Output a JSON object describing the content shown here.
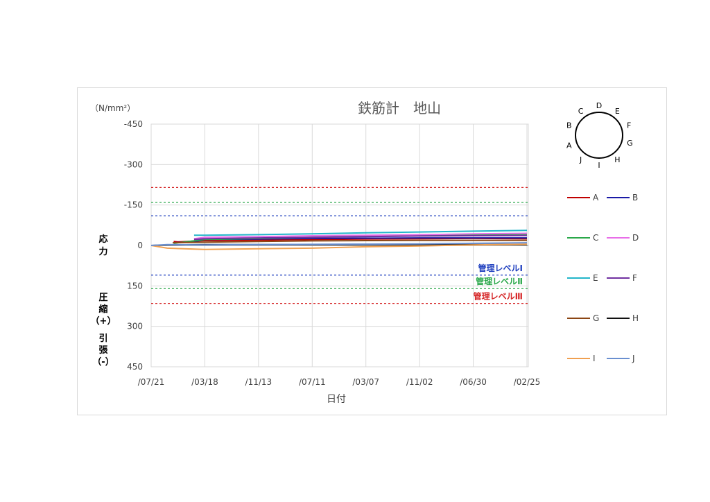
{
  "chart_data": {
    "type": "line",
    "title": "鉄筋計　地山",
    "unit": "（N/mm²）",
    "xlabel": "日付",
    "ylabel_top": [
      "応",
      "力"
    ],
    "ylabel_mid": [
      "圧",
      "縮",
      "（+）"
    ],
    "ylabel_bot": [
      "引",
      "張",
      "（-）"
    ],
    "yticks": [
      -450,
      -300,
      -150,
      0,
      150,
      300,
      450
    ],
    "ylim": [
      -450,
      450
    ],
    "y_inverted": true,
    "x_categories": [
      "/07/21",
      "/03/18",
      "/11/13",
      "/07/11",
      "/03/07",
      "/11/02",
      "/06/30",
      "/02/25"
    ],
    "grid": true,
    "levels": [
      {
        "name": "管理レベルⅠ",
        "value": 110,
        "color": "#1f3fbf"
      },
      {
        "name": "管理レベルⅡ",
        "value": 160,
        "color": "#2aa84a"
      },
      {
        "name": "管理レベルⅢ",
        "value": 215,
        "color": "#d62728"
      }
    ],
    "mirror_levels": [
      -110,
      -160,
      -215
    ],
    "series": [
      {
        "name": "A",
        "color": "#c00000",
        "x": [
          0.42,
          0.5,
          1,
          2,
          3,
          4,
          5,
          6,
          7
        ],
        "y": [
          -15,
          -13,
          -18,
          -20,
          -22,
          -24,
          -25,
          -26,
          -25
        ]
      },
      {
        "name": "B",
        "color": "#1a1aa6",
        "x": [
          0.42,
          0.8,
          1,
          2,
          3,
          4,
          5,
          6,
          7
        ],
        "y": [
          -10,
          -14,
          -22,
          -24,
          -26,
          -27,
          -28,
          -28,
          -28
        ]
      },
      {
        "name": "C",
        "color": "#2aa84a",
        "x": [
          0.42,
          1,
          2,
          3,
          4,
          5,
          6,
          7
        ],
        "y": [
          -8,
          -22,
          -26,
          -30,
          -35,
          -38,
          -40,
          -42
        ]
      },
      {
        "name": "D",
        "color": "#e86ee8",
        "x": [
          0.8,
          1,
          2,
          3,
          4,
          5,
          6,
          7
        ],
        "y": [
          -25,
          -30,
          -33,
          -36,
          -38,
          -40,
          -43,
          -45
        ]
      },
      {
        "name": "E",
        "color": "#22b5c9",
        "x": [
          0.8,
          1,
          2,
          3,
          4,
          5,
          6,
          7
        ],
        "y": [
          -38,
          -38,
          -40,
          -43,
          -47,
          -50,
          -53,
          -56
        ]
      },
      {
        "name": "F",
        "color": "#7030a0",
        "x": [
          0.8,
          1,
          2,
          3,
          4,
          5,
          6,
          7
        ],
        "y": [
          -22,
          -25,
          -28,
          -30,
          -33,
          -35,
          -36,
          -37
        ]
      },
      {
        "name": "G",
        "color": "#8b4513",
        "x": [
          0.4,
          1,
          2,
          3,
          4,
          5,
          6,
          7
        ],
        "y": [
          -10,
          -12,
          -15,
          -17,
          -18,
          -19,
          -19,
          -19
        ]
      },
      {
        "name": "H",
        "color": "#111111",
        "x": [
          0,
          0.3,
          1,
          2,
          3,
          4,
          5,
          6,
          7
        ],
        "y": [
          0,
          -2,
          -3,
          -3,
          -3,
          -3,
          -3,
          -3,
          -3
        ]
      },
      {
        "name": "I",
        "color": "#f0a050",
        "x": [
          0,
          0.3,
          1,
          2,
          3,
          4,
          5,
          6,
          7
        ],
        "y": [
          0,
          10,
          15,
          12,
          10,
          5,
          2,
          -2,
          -5
        ]
      },
      {
        "name": "J",
        "color": "#6a8fd0",
        "x": [
          0,
          0.3,
          1,
          2,
          3,
          4,
          5,
          6,
          7
        ],
        "y": [
          0,
          -3,
          -2,
          -3,
          -4,
          -5,
          -6,
          -8,
          -10
        ]
      }
    ],
    "circle_labels": [
      "D",
      "E",
      "F",
      "G",
      "H",
      "I",
      "J",
      "A",
      "B",
      "C"
    ]
  }
}
